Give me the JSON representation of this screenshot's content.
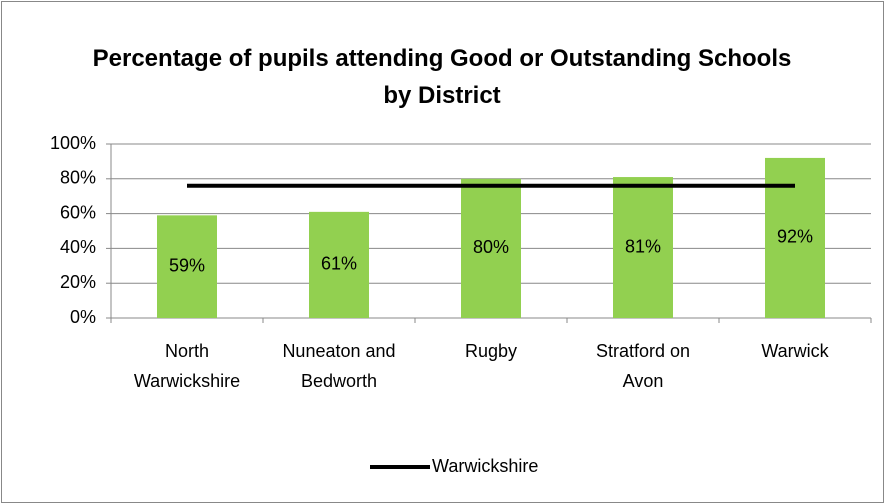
{
  "chart_data": {
    "type": "bar",
    "title": "Percentage of pupils attending Good or Outstanding Schools by District",
    "categories": [
      "North Warwickshire",
      "Nuneaton and Bedworth",
      "Rugby",
      "Stratford on Avon",
      "Warwick"
    ],
    "series": [
      {
        "type": "bar",
        "color": "#92d050",
        "values": [
          59,
          61,
          80,
          81,
          92
        ],
        "value_labels": [
          "59%",
          "61%",
          "80%",
          "81%",
          "92%"
        ]
      },
      {
        "type": "line",
        "name": "Warwickshire",
        "color": "#000000",
        "values": [
          76,
          76,
          76,
          76,
          76
        ]
      }
    ],
    "ylim": [
      0,
      100
    ],
    "yticks": [
      {
        "value": 0,
        "label": "0%"
      },
      {
        "value": 20,
        "label": "20%"
      },
      {
        "value": 40,
        "label": "40%"
      },
      {
        "value": 60,
        "label": "60%"
      },
      {
        "value": 80,
        "label": "80%"
      },
      {
        "value": 100,
        "label": "100%"
      }
    ],
    "grid": true,
    "legend": "bottom"
  }
}
